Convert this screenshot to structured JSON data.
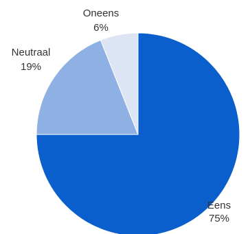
{
  "chart_data": {
    "type": "pie",
    "slices": [
      {
        "label": "Eens",
        "value": 75,
        "value_label": "75%",
        "color": "#0a5fcc"
      },
      {
        "label": "Neutraal",
        "value": 19,
        "value_label": "19%",
        "color": "#8fb0e2"
      },
      {
        "label": "Oneens",
        "value": 6,
        "value_label": "6%",
        "color": "#dde5f5"
      }
    ],
    "start_angle_deg": 0,
    "direction": "clockwise",
    "legend": "none"
  }
}
